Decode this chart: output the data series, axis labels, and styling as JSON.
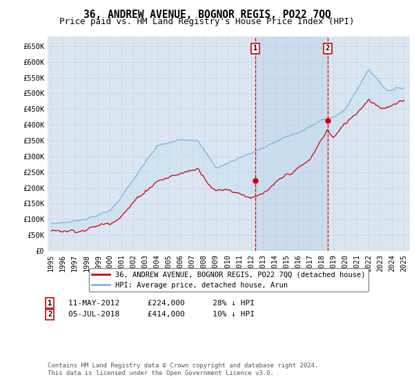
{
  "title": "36, ANDREW AVENUE, BOGNOR REGIS, PO22 7QQ",
  "subtitle": "Price paid vs. HM Land Registry's House Price Index (HPI)",
  "ylabel_ticks": [
    "£0",
    "£50K",
    "£100K",
    "£150K",
    "£200K",
    "£250K",
    "£300K",
    "£350K",
    "£400K",
    "£450K",
    "£500K",
    "£550K",
    "£600K",
    "£650K"
  ],
  "ylim": [
    0,
    680000
  ],
  "xlim_start": 1994.7,
  "xlim_end": 2025.5,
  "background_color": "#ffffff",
  "plot_bg_color": "#dce6f1",
  "grid_color": "#c8d8e8",
  "hpi_color": "#7ab4d8",
  "price_color": "#cc0000",
  "fill_between_color": "#c8dff0",
  "transaction1_x": 2012.36,
  "transaction1_y": 224000,
  "transaction2_x": 2018.51,
  "transaction2_y": 414000,
  "legend_label1": "36, ANDREW AVENUE, BOGNOR REGIS, PO22 7QQ (detached house)",
  "legend_label2": "HPI: Average price, detached house, Arun",
  "annotation1_label": "1",
  "annotation2_label": "2",
  "footer": "Contains HM Land Registry data © Crown copyright and database right 2024.\nThis data is licensed under the Open Government Licence v3.0.",
  "title_fontsize": 10.5,
  "subtitle_fontsize": 9,
  "tick_fontsize": 7.5
}
